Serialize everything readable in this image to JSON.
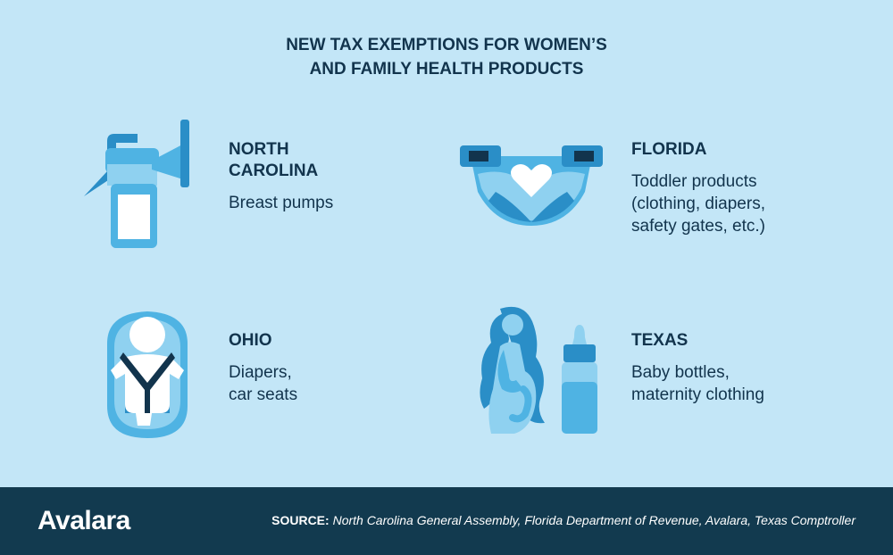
{
  "title": {
    "line1": "NEW TAX EXEMPTIONS FOR WOMEN’S",
    "line2": "AND FAMILY HEALTH PRODUCTS"
  },
  "items": [
    {
      "state_lines": [
        "NORTH",
        "CAROLINA"
      ],
      "desc_lines": [
        "Breast pumps"
      ],
      "icon": "breast-pump-icon"
    },
    {
      "state_lines": [
        "FLORIDA"
      ],
      "desc_lines": [
        "Toddler products",
        "(clothing, diapers,",
        "safety gates, etc.)"
      ],
      "icon": "diaper-icon"
    },
    {
      "state_lines": [
        "OHIO"
      ],
      "desc_lines": [
        "Diapers,",
        "car seats"
      ],
      "icon": "car-seat-icon"
    },
    {
      "state_lines": [
        "TEXAS"
      ],
      "desc_lines": [
        "Baby bottles,",
        "maternity clothing"
      ],
      "icon": "pregnant-woman-and-baby-bottle-icon"
    }
  ],
  "footer": {
    "logo": "Avalara",
    "source_label": "SOURCE:",
    "source_text": " North Carolina General Assembly, Florida Department of Revenue, Avalara, Texas Comptroller"
  },
  "colors": {
    "background": "#c3e6f7",
    "footer": "#123a4f",
    "dark_text": "#12344d",
    "icon_dark": "#2a8ec7",
    "icon_mid": "#4fb3e3",
    "icon_light": "#8fd1f0"
  }
}
